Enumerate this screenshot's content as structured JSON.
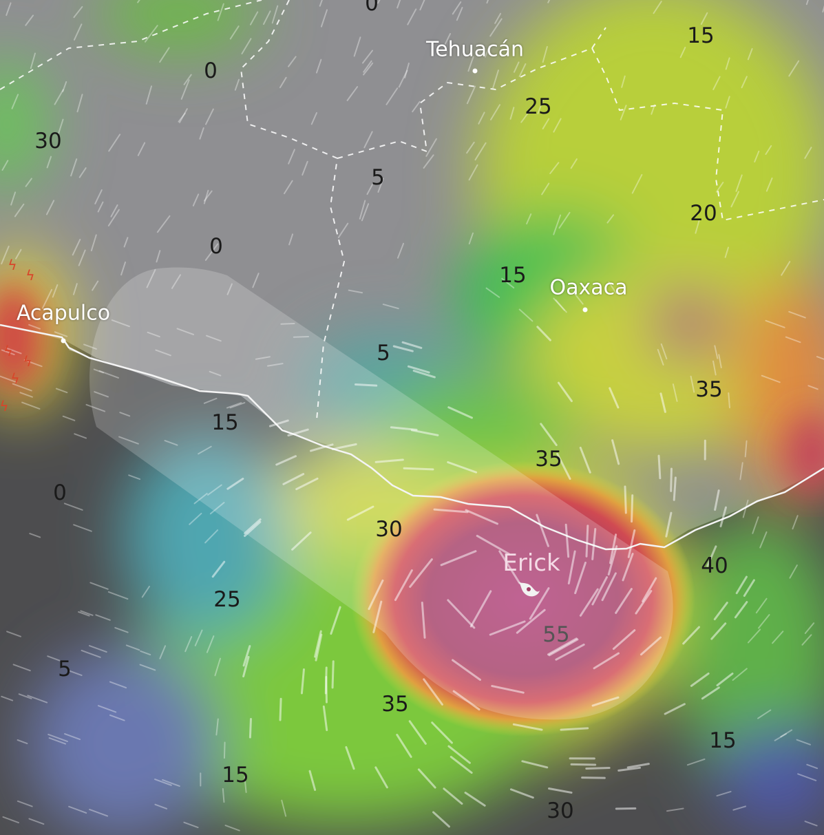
{
  "map": {
    "layer": "wind gust",
    "colors": {
      "calm": "#555555",
      "low": "#5a62b8",
      "mid": "#3cc44a",
      "high": "#d9d63a",
      "very_high": "#a53a6a",
      "land": "#9a9a9a",
      "coastline": "#ffffff"
    },
    "cities": [
      {
        "name": "Tehuacán"
      },
      {
        "name": "Oaxaca"
      },
      {
        "name": "Acapulco"
      }
    ],
    "storm": {
      "name": "Erick",
      "icon": "hurricane-icon"
    },
    "values": [
      "0",
      "15",
      "0",
      "25",
      "30",
      "5",
      "20",
      "0",
      "15",
      "5",
      "35",
      "15",
      "35",
      "0",
      "30",
      "40",
      "25",
      "55",
      "5",
      "35",
      "15",
      "15",
      "30"
    ],
    "icons": {
      "lightning": "lightning-icon"
    }
  }
}
